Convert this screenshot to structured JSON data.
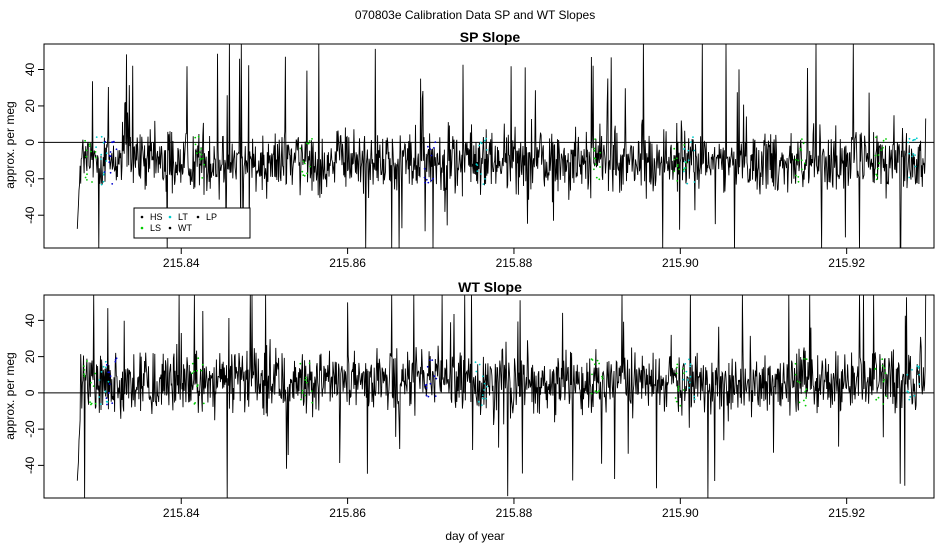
{
  "figure": {
    "title": "070803e   Calibration Data SP and WT Slopes"
  },
  "chart_data": [
    {
      "type": "line",
      "title": "SP Slope",
      "xlabel": "",
      "ylabel": "approx. per meg",
      "xlim": [
        215.8235,
        215.9305
      ],
      "ylim": [
        -58,
        54
      ],
      "x_ticks": [
        215.84,
        215.86,
        215.88,
        215.9,
        215.92
      ],
      "x_tick_labels": [
        "215.84",
        "215.86",
        "215.88",
        "215.90",
        "215.92"
      ],
      "y_ticks": [
        -40,
        -20,
        0,
        20,
        40
      ],
      "y_tick_labels": [
        "-40",
        "-20",
        "0",
        "20",
        "40"
      ],
      "reference_line_y": 0,
      "series_range": {
        "x_start": 215.8275,
        "x_end": 215.9295
      },
      "baseline_mean": -10,
      "noise_sd": 11,
      "legend": {
        "placement": "bottom-left",
        "items": [
          {
            "label": "HS",
            "color": "#000000"
          },
          {
            "label": "LS",
            "color": "#00cc00"
          },
          {
            "label": "LT",
            "color": "#00cccc"
          },
          {
            "label": "WT",
            "color": "#000000"
          },
          {
            "label": "LP",
            "color": "#000000"
          }
        ]
      }
    },
    {
      "type": "line",
      "title": "WT Slope",
      "xlabel": "day of year",
      "ylabel": "approx. per meg",
      "xlim": [
        215.8235,
        215.9305
      ],
      "ylim": [
        -58,
        54
      ],
      "x_ticks": [
        215.84,
        215.86,
        215.88,
        215.9,
        215.92
      ],
      "x_tick_labels": [
        "215.84",
        "215.86",
        "215.88",
        "215.90",
        "215.92"
      ],
      "y_ticks": [
        -40,
        -20,
        0,
        20,
        40
      ],
      "y_tick_labels": [
        "-40",
        "-20",
        "0",
        "20",
        "40"
      ],
      "reference_line_y": 0,
      "series_range": {
        "x_start": 215.8275,
        "x_end": 215.9295
      },
      "baseline_mean": 6,
      "noise_sd": 11
    }
  ],
  "colors": {
    "main_trace": "#000000",
    "hs_points": "#0000cc",
    "ls_points": "#00cc00",
    "lt_points": "#00cccc"
  }
}
